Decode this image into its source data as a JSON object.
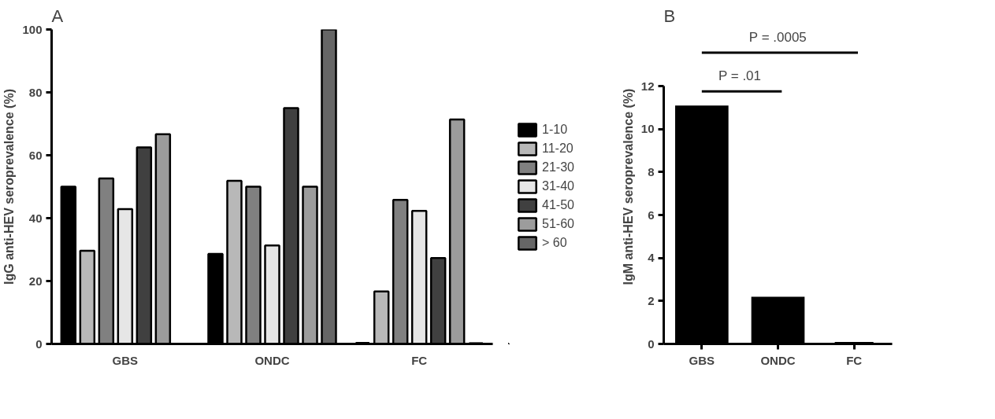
{
  "chart_data": [
    {
      "type": "bar",
      "title": "A",
      "ylabel": "IgG anti-HEV seroprevalence (%)",
      "categories": [
        "GBS",
        "ONDC",
        "FC"
      ],
      "ylim": [
        0,
        100
      ],
      "yticks": [
        0,
        20,
        40,
        60,
        80,
        100
      ],
      "grid": false,
      "legend": "right",
      "series": [
        {
          "name": "1-10",
          "color": "#000000",
          "values": [
            50,
            28.6,
            0
          ]
        },
        {
          "name": "11-20",
          "color": "#b8b8b8",
          "values": [
            29.6,
            51.9,
            16.7
          ]
        },
        {
          "name": "21-30",
          "color": "#808080",
          "values": [
            52.6,
            50,
            45.8
          ]
        },
        {
          "name": "31-40",
          "color": "#e6e6e6",
          "values": [
            42.9,
            31.3,
            42.3
          ]
        },
        {
          "name": "41-50",
          "color": "#404040",
          "values": [
            62.5,
            75,
            27.3
          ]
        },
        {
          "name": "51-60",
          "color": "#9c9c9c",
          "values": [
            66.7,
            50,
            71.4
          ]
        },
        {
          "name": "> 60",
          "color": "#666666",
          "values": [
            null,
            100,
            0
          ]
        }
      ]
    },
    {
      "type": "bar",
      "title": "B",
      "ylabel": "IgM anti-HEV seroprevalence (%)",
      "categories": [
        "GBS",
        "ONDC",
        "FC"
      ],
      "ylim": [
        0,
        12
      ],
      "yticks": [
        0,
        2,
        4,
        6,
        8,
        10,
        12
      ],
      "grid": false,
      "legend": false,
      "series": [
        {
          "color": "#000000",
          "values": [
            11.1,
            2.2,
            0
          ]
        }
      ],
      "annotations": [
        "P = .01",
        "P = .0005"
      ]
    }
  ]
}
